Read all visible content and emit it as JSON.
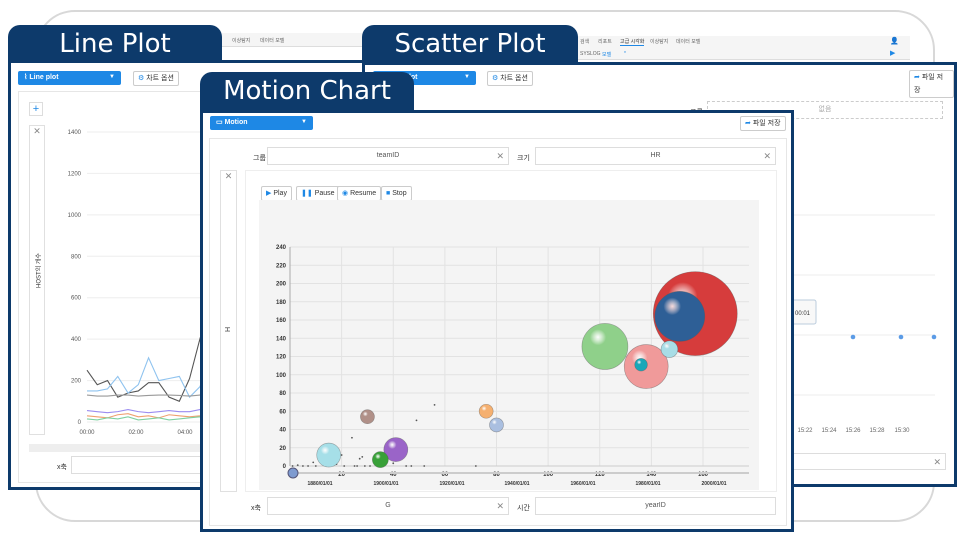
{
  "titles": {
    "line": "Line Plot",
    "scatter": "Scatter Plot",
    "motion": "Motion Chart"
  },
  "line_panel": {
    "menu": [
      "이상탐지",
      "데이터 모델"
    ],
    "dropdown": "Line plot",
    "options_button": "차트 옵션",
    "y_label": "HOST의 개수",
    "x_field_label": "x축",
    "chart_data": {
      "type": "line",
      "ylabel": "HOST의 개수",
      "ylim": [
        0,
        1400
      ],
      "yticks": [
        0,
        200,
        400,
        600,
        800,
        1000,
        1200,
        1400
      ],
      "xticks": [
        "00:00",
        "02:00",
        "04:00"
      ],
      "series": [
        {
          "color": "#555555",
          "values": [
            250,
            180,
            200,
            120,
            140,
            150,
            190,
            190,
            120,
            100,
            210,
            400,
            210,
            300,
            150,
            100,
            350,
            220,
            140,
            260,
            140,
            340,
            150,
            130,
            80,
            150,
            60,
            140
          ]
        },
        {
          "color": "#8fc3ef",
          "values": [
            150,
            150,
            160,
            220,
            140,
            180,
            310,
            200,
            210,
            220,
            120,
            170,
            290,
            240,
            210,
            390,
            150,
            300,
            200,
            190,
            250,
            190,
            210,
            310,
            160,
            120,
            200,
            30
          ]
        },
        {
          "color": "#999999",
          "values": [
            130,
            125,
            125,
            130,
            130,
            125,
            128,
            130,
            130,
            128,
            125,
            130,
            130,
            128,
            130,
            125,
            130,
            128,
            130,
            130,
            125,
            130,
            128,
            130,
            130,
            125,
            128,
            130
          ]
        },
        {
          "color": "#9b8cf0",
          "values": [
            55,
            50,
            45,
            50,
            60,
            50,
            45,
            50,
            55,
            50,
            50,
            60,
            50,
            45,
            50,
            55,
            50,
            45,
            60,
            50,
            50,
            55,
            50,
            45,
            50,
            55,
            50,
            50
          ]
        },
        {
          "color": "#f0a070",
          "values": [
            30,
            25,
            20,
            35,
            40,
            25,
            30,
            20,
            35,
            30,
            25,
            30,
            40,
            25,
            30,
            35,
            20,
            30,
            45,
            25,
            30,
            35,
            25,
            30,
            20,
            30,
            25,
            30
          ]
        },
        {
          "color": "#7fd0a0",
          "values": [
            15,
            10,
            20,
            15,
            25,
            10,
            15,
            20,
            10,
            15,
            20,
            25,
            15,
            10,
            20,
            15,
            10,
            25,
            20,
            15,
            10,
            20,
            15,
            10,
            25,
            15,
            20,
            15
          ]
        }
      ]
    }
  },
  "scatter_panel": {
    "menu": [
      "검색",
      "리포트",
      "고급 시각화",
      "이상탐지",
      "데이터 모델"
    ],
    "submenu": [
      "SYSLOG",
      "모델",
      "*"
    ],
    "dropdown": "Scatter plot",
    "options_button": "차트 옵션",
    "save_button": "파일 저장",
    "group_label": "그룹",
    "group_value": "없음",
    "tooltip": "00:01",
    "chart_data": {
      "type": "scatter",
      "xticks": [
        "15:22",
        "15:24",
        "15:26",
        "15:28",
        "15:30"
      ],
      "points": [
        {
          "x": "15:25",
          "y": "mid"
        },
        {
          "x": "15:28",
          "y": "mid"
        },
        {
          "x": "15:30",
          "y": "mid"
        }
      ]
    }
  },
  "motion_panel": {
    "dropdown": "Motion",
    "save_button": "파일 저장",
    "group_label": "그룹",
    "group_value": "teamID",
    "size_label": "크기",
    "size_value": "HR",
    "y_field_value": "H",
    "controls": {
      "play": "Play",
      "pause": "Pause",
      "resume": "Resume",
      "stop": "Stop"
    },
    "x_label": "x축",
    "x_value": "G",
    "time_label": "시간",
    "time_value": "yearID",
    "chart_data": {
      "type": "scatter",
      "subtype": "bubble",
      "xlim": [
        0,
        175
      ],
      "ylim": [
        0,
        240
      ],
      "xticks": [
        20,
        40,
        60,
        80,
        100,
        120,
        140,
        160
      ],
      "yticks": [
        0,
        20,
        40,
        60,
        80,
        100,
        120,
        140,
        160,
        180,
        200,
        220,
        240
      ],
      "time_ticks": [
        "1880/01/01",
        "1900/01/01",
        "1920/01/01",
        "1940/01/01",
        "1960/01/01",
        "1980/01/01",
        "2000/01/01"
      ],
      "time_position": "start",
      "bubbles": [
        {
          "x": 157,
          "y": 167,
          "size": 1764,
          "color": "#d63c3c"
        },
        {
          "x": 151,
          "y": 164,
          "size": 625,
          "color": "#2e5f96"
        },
        {
          "x": 122,
          "y": 131,
          "size": 529,
          "color": "#8fd08a"
        },
        {
          "x": 138,
          "y": 109,
          "size": 484,
          "color": "#f09a9a"
        },
        {
          "x": 136,
          "y": 111,
          "size": 40,
          "color": "#1aa7b8"
        },
        {
          "x": 147,
          "y": 128,
          "size": 70,
          "color": "#a8dde6"
        },
        {
          "x": 76,
          "y": 60,
          "size": 49,
          "color": "#f5b070"
        },
        {
          "x": 80,
          "y": 45,
          "size": 49,
          "color": "#aabfe0"
        },
        {
          "x": 30,
          "y": 54,
          "size": 49,
          "color": "#b09088"
        },
        {
          "x": 41,
          "y": 18,
          "size": 144,
          "color": "#9a64c8"
        },
        {
          "x": 35,
          "y": 7,
          "size": 64,
          "color": "#38a038"
        },
        {
          "x": 15,
          "y": 12,
          "size": 144,
          "color": "#a6dfe8"
        }
      ],
      "dots": [
        [
          1,
          0
        ],
        [
          3,
          1
        ],
        [
          5,
          0
        ],
        [
          7,
          0
        ],
        [
          9,
          4
        ],
        [
          10,
          0
        ],
        [
          11,
          15
        ],
        [
          12,
          9
        ],
        [
          14,
          0
        ],
        [
          18,
          2
        ],
        [
          20,
          12
        ],
        [
          21,
          0
        ],
        [
          24,
          31
        ],
        [
          25,
          0
        ],
        [
          26,
          0
        ],
        [
          27,
          8
        ],
        [
          28,
          10
        ],
        [
          29,
          0
        ],
        [
          31,
          0
        ],
        [
          40,
          3
        ],
        [
          45,
          0
        ],
        [
          47,
          0
        ],
        [
          49,
          50
        ],
        [
          52,
          0
        ],
        [
          56,
          67
        ],
        [
          72,
          0
        ]
      ]
    }
  }
}
